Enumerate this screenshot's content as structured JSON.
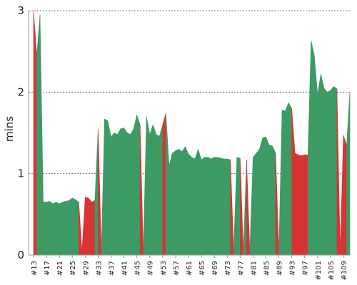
{
  "chart_data": {
    "type": "area",
    "title": "",
    "ylabel": "mins",
    "xlabel": "",
    "ylim": [
      0,
      3
    ],
    "y_ticks": [
      "0",
      "1",
      "2",
      "3"
    ],
    "grid": true,
    "x_start_build": 13,
    "x_tick_labels": [
      "#13",
      "#17",
      "#21",
      "#25",
      "#29",
      "#33",
      "#37",
      "#41",
      "#45",
      "#49",
      "#53",
      "#57",
      "#61",
      "#65",
      "#69",
      "#73",
      "#77",
      "#81",
      "#85",
      "#89",
      "#93",
      "#97",
      "#101",
      "#105",
      "#109"
    ],
    "series_colors": {
      "success": "#3d9a64",
      "failure": "#d83434"
    },
    "builds": [
      {
        "label": "#13",
        "value": 3.0,
        "status": "success"
      },
      {
        "label": "#14",
        "value": 2.45,
        "status": "failure"
      },
      {
        "label": "#15",
        "value": 2.95,
        "status": "success"
      },
      {
        "label": "#16",
        "value": 0.65,
        "status": "success"
      },
      {
        "label": "#17",
        "value": 0.65,
        "status": "success"
      },
      {
        "label": "#18",
        "value": 0.66,
        "status": "success"
      },
      {
        "label": "#19",
        "value": 0.63,
        "status": "success"
      },
      {
        "label": "#20",
        "value": 0.65,
        "status": "success"
      },
      {
        "label": "#21",
        "value": 0.63,
        "status": "success"
      },
      {
        "label": "#22",
        "value": 0.65,
        "status": "success"
      },
      {
        "label": "#23",
        "value": 0.66,
        "status": "success"
      },
      {
        "label": "#24",
        "value": 0.67,
        "status": "success"
      },
      {
        "label": "#25",
        "value": 0.7,
        "status": "success"
      },
      {
        "label": "#26",
        "value": 0.68,
        "status": "success"
      },
      {
        "label": "#27",
        "value": 0.65,
        "status": "success"
      },
      {
        "label": "#28",
        "value": 0.05,
        "status": "failure"
      },
      {
        "label": "#29",
        "value": 0.71,
        "status": "failure"
      },
      {
        "label": "#30",
        "value": 0.7,
        "status": "failure"
      },
      {
        "label": "#31",
        "value": 0.65,
        "status": "failure"
      },
      {
        "label": "#32",
        "value": 0.67,
        "status": "failure"
      },
      {
        "label": "#33",
        "value": 1.55,
        "status": "success"
      },
      {
        "label": "#34",
        "value": 0.05,
        "status": "failure"
      },
      {
        "label": "#35",
        "value": 1.67,
        "status": "success"
      },
      {
        "label": "#36",
        "value": 1.65,
        "status": "success"
      },
      {
        "label": "#37",
        "value": 1.45,
        "status": "success"
      },
      {
        "label": "#38",
        "value": 1.5,
        "status": "success"
      },
      {
        "label": "#39",
        "value": 1.48,
        "status": "success"
      },
      {
        "label": "#40",
        "value": 1.55,
        "status": "success"
      },
      {
        "label": "#41",
        "value": 1.56,
        "status": "success"
      },
      {
        "label": "#42",
        "value": 1.5,
        "status": "success"
      },
      {
        "label": "#43",
        "value": 1.48,
        "status": "success"
      },
      {
        "label": "#44",
        "value": 1.55,
        "status": "success"
      },
      {
        "label": "#45",
        "value": 1.72,
        "status": "success"
      },
      {
        "label": "#46",
        "value": 1.6,
        "status": "success"
      },
      {
        "label": "#47",
        "value": 0.05,
        "status": "failure"
      },
      {
        "label": "#48",
        "value": 1.7,
        "status": "success"
      },
      {
        "label": "#49",
        "value": 1.48,
        "status": "success"
      },
      {
        "label": "#50",
        "value": 1.6,
        "status": "success"
      },
      {
        "label": "#51",
        "value": 1.48,
        "status": "success"
      },
      {
        "label": "#52",
        "value": 1.46,
        "status": "success"
      },
      {
        "label": "#53",
        "value": 1.6,
        "status": "success"
      },
      {
        "label": "#54",
        "value": 1.74,
        "status": "failure"
      },
      {
        "label": "#55",
        "value": 1.1,
        "status": "success"
      },
      {
        "label": "#56",
        "value": 1.25,
        "status": "success"
      },
      {
        "label": "#57",
        "value": 1.28,
        "status": "success"
      },
      {
        "label": "#58",
        "value": 1.3,
        "status": "success"
      },
      {
        "label": "#59",
        "value": 1.27,
        "status": "success"
      },
      {
        "label": "#60",
        "value": 1.33,
        "status": "success"
      },
      {
        "label": "#61",
        "value": 1.24,
        "status": "success"
      },
      {
        "label": "#62",
        "value": 1.2,
        "status": "success"
      },
      {
        "label": "#63",
        "value": 1.18,
        "status": "success"
      },
      {
        "label": "#64",
        "value": 1.3,
        "status": "success"
      },
      {
        "label": "#65",
        "value": 1.17,
        "status": "success"
      },
      {
        "label": "#66",
        "value": 1.2,
        "status": "success"
      },
      {
        "label": "#67",
        "value": 1.2,
        "status": "success"
      },
      {
        "label": "#68",
        "value": 1.18,
        "status": "success"
      },
      {
        "label": "#69",
        "value": 1.2,
        "status": "success"
      },
      {
        "label": "#70",
        "value": 1.2,
        "status": "success"
      },
      {
        "label": "#71",
        "value": 1.19,
        "status": "success"
      },
      {
        "label": "#72",
        "value": 1.18,
        "status": "success"
      },
      {
        "label": "#73",
        "value": 1.18,
        "status": "success"
      },
      {
        "label": "#74",
        "value": 1.17,
        "status": "success"
      },
      {
        "label": "#75",
        "value": 0.05,
        "status": "failure"
      },
      {
        "label": "#76",
        "value": 1.2,
        "status": "success"
      },
      {
        "label": "#77",
        "value": 1.19,
        "status": "success"
      },
      {
        "label": "#78",
        "value": 0.05,
        "status": "failure"
      },
      {
        "label": "#79",
        "value": 1.17,
        "status": "success"
      },
      {
        "label": "#80",
        "value": 0.05,
        "status": "failure"
      },
      {
        "label": "#81",
        "value": 1.2,
        "status": "success"
      },
      {
        "label": "#82",
        "value": 1.25,
        "status": "success"
      },
      {
        "label": "#83",
        "value": 1.3,
        "status": "success"
      },
      {
        "label": "#84",
        "value": 1.44,
        "status": "success"
      },
      {
        "label": "#85",
        "value": 1.45,
        "status": "success"
      },
      {
        "label": "#86",
        "value": 1.35,
        "status": "success"
      },
      {
        "label": "#87",
        "value": 1.34,
        "status": "success"
      },
      {
        "label": "#88",
        "value": 1.25,
        "status": "success"
      },
      {
        "label": "#89",
        "value": 0.05,
        "status": "failure"
      },
      {
        "label": "#90",
        "value": 1.78,
        "status": "success"
      },
      {
        "label": "#91",
        "value": 1.77,
        "status": "success"
      },
      {
        "label": "#92",
        "value": 1.87,
        "status": "success"
      },
      {
        "label": "#93",
        "value": 1.8,
        "status": "success"
      },
      {
        "label": "#94",
        "value": 1.25,
        "status": "failure"
      },
      {
        "label": "#95",
        "value": 1.23,
        "status": "failure"
      },
      {
        "label": "#96",
        "value": 1.22,
        "status": "failure"
      },
      {
        "label": "#97",
        "value": 1.23,
        "status": "failure"
      },
      {
        "label": "#98",
        "value": 1.23,
        "status": "failure"
      },
      {
        "label": "#99",
        "value": 2.63,
        "status": "success"
      },
      {
        "label": "#100",
        "value": 2.45,
        "status": "success"
      },
      {
        "label": "#101",
        "value": 1.97,
        "status": "success"
      },
      {
        "label": "#102",
        "value": 2.22,
        "status": "success"
      },
      {
        "label": "#103",
        "value": 2.05,
        "status": "success"
      },
      {
        "label": "#104",
        "value": 2.0,
        "status": "success"
      },
      {
        "label": "#105",
        "value": 2.02,
        "status": "success"
      },
      {
        "label": "#106",
        "value": 2.07,
        "status": "success"
      },
      {
        "label": "#107",
        "value": 2.04,
        "status": "success"
      },
      {
        "label": "#108",
        "value": 0.05,
        "status": "failure"
      },
      {
        "label": "#109",
        "value": 1.47,
        "status": "failure"
      },
      {
        "label": "#110",
        "value": 1.35,
        "status": "failure"
      },
      {
        "label": "#111",
        "value": 2.0,
        "status": "success"
      }
    ]
  }
}
